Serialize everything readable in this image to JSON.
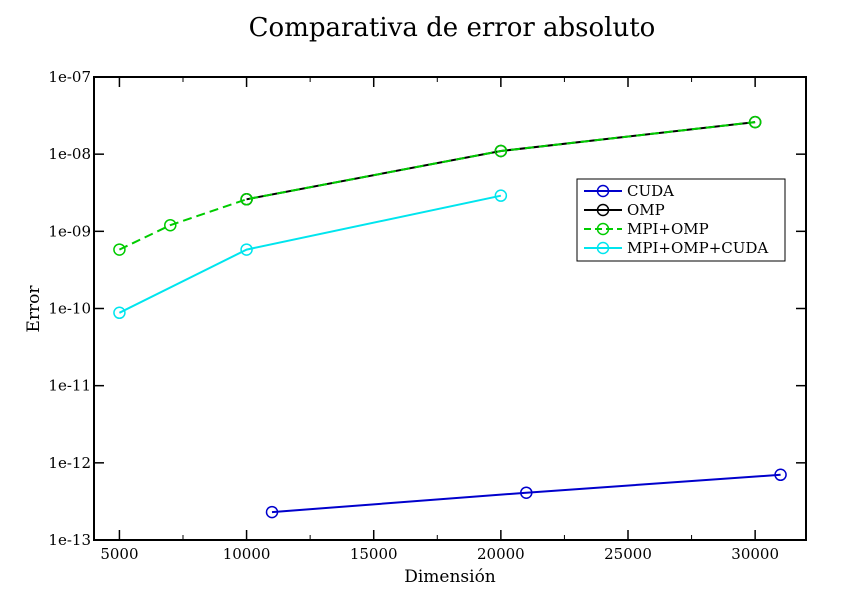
{
  "chart_data": {
    "type": "line",
    "title": "Comparativa de error absoluto",
    "xlabel": "Dimensión",
    "ylabel": "Error",
    "xlim": [
      4000,
      32000
    ],
    "ylim": [
      1e-13,
      1e-07
    ],
    "yscale": "log",
    "grid": false,
    "legend_position": "top-right",
    "x_ticks": [
      5000,
      10000,
      15000,
      20000,
      25000,
      30000
    ],
    "x_tick_labels": [
      "5000",
      "10000",
      "15000",
      "20000",
      "25000",
      "30000"
    ],
    "y_ticks": [
      1e-13,
      1e-12,
      1e-11,
      1e-10,
      1e-09,
      1e-08,
      1e-07
    ],
    "y_tick_labels": [
      "1e-13",
      "1e-12",
      "1e-11",
      "1e-10",
      "1e-09",
      "1e-08",
      "1e-07"
    ],
    "series": [
      {
        "name": "CUDA",
        "color": "#0000cc",
        "dash": "solid",
        "x": [
          11000,
          21000,
          31000
        ],
        "y": [
          2.3e-13,
          4.1e-13,
          7e-13
        ]
      },
      {
        "name": "OMP",
        "color": "#000000",
        "dash": "solid",
        "x": [
          10000,
          20000,
          30000
        ],
        "y": [
          2.6e-09,
          1.1e-08,
          2.6e-08
        ]
      },
      {
        "name": "MPI+OMP",
        "color": "#00cc00",
        "dash": "dashed",
        "x": [
          5000,
          7000,
          10000,
          20000,
          30000
        ],
        "y": [
          5.8e-10,
          1.2e-09,
          2.6e-09,
          1.1e-08,
          2.6e-08
        ]
      },
      {
        "name": "MPI+OMP+CUDA",
        "color": "#00e5ee",
        "dash": "solid",
        "x": [
          5000,
          10000,
          20000
        ],
        "y": [
          8.8e-11,
          5.8e-10,
          2.9e-09
        ]
      }
    ]
  }
}
